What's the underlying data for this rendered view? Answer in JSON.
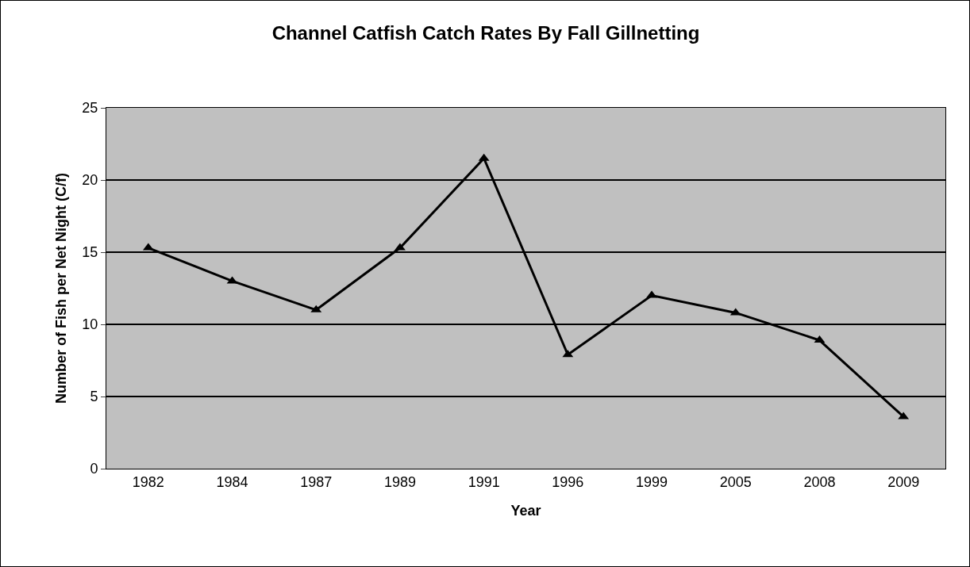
{
  "chart_data": {
    "type": "line",
    "title": "Channel Catfish Catch Rates By Fall Gillnetting",
    "xlabel": "Year",
    "ylabel": "Number of Fish per Net Night (C/f)",
    "categories": [
      "1982",
      "1984",
      "1987",
      "1989",
      "1991",
      "1996",
      "1999",
      "2005",
      "2008",
      "2009"
    ],
    "series": [
      {
        "color": "#000000",
        "values": [
          15.3,
          13.0,
          11.0,
          15.3,
          21.5,
          7.9,
          12.0,
          10.8,
          8.9,
          3.6
        ]
      }
    ],
    "ylim": [
      0,
      25
    ],
    "yticks": [
      0,
      5,
      10,
      15,
      20,
      25
    ],
    "grid": "y",
    "marker": "triangle",
    "line_style": "solid",
    "legend": false
  }
}
